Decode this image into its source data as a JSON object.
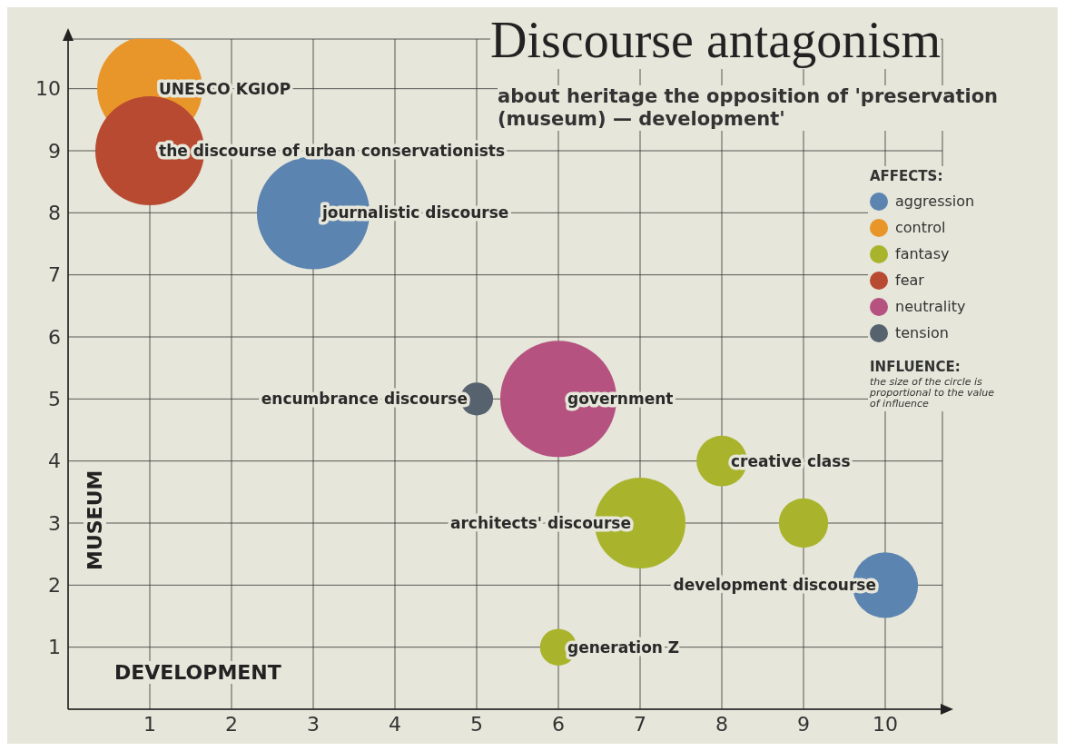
{
  "chart_data": {
    "type": "bubble",
    "title": "Discourse antagonism",
    "subtitle": "about heritage the opposition of 'preservation (museum) — development'",
    "xlabel": "DEVELOPMENT",
    "ylabel": "MUSEUM",
    "legend_title": "AFFECTS:",
    "legend": "right",
    "grid": true,
    "xlim": [
      0,
      10.7
    ],
    "ylim": [
      0,
      10.8
    ],
    "xticks": [
      1,
      2,
      3,
      4,
      5,
      6,
      7,
      8,
      9,
      10
    ],
    "yticks": [
      1,
      2,
      3,
      4,
      5,
      6,
      7,
      8,
      9,
      10
    ],
    "series": [
      {
        "name": "aggression",
        "color": "#5b84b1",
        "x": [
          3,
          10
        ],
        "values": [
          8,
          2
        ],
        "sizes": [
          0.94,
          0.32
        ]
      },
      {
        "name": "control",
        "color": "#e8962a",
        "x": [
          1
        ],
        "values": [
          10
        ],
        "sizes": [
          0.82
        ]
      },
      {
        "name": "fantasy",
        "color": "#a9b42c",
        "x": [
          8,
          7,
          9,
          6
        ],
        "values": [
          4,
          3,
          3,
          1
        ],
        "sizes": [
          0.19,
          0.61,
          0.18,
          0.1
        ]
      },
      {
        "name": "fear",
        "color": "#b84a32",
        "x": [
          1
        ],
        "values": [
          9
        ],
        "sizes": [
          0.88
        ]
      },
      {
        "name": "neutrality",
        "color": "#b5527f",
        "x": [
          6
        ],
        "values": [
          5
        ],
        "sizes": [
          1
        ]
      },
      {
        "name": "tension",
        "color": "#56626e",
        "x": [
          5
        ],
        "values": [
          5
        ],
        "sizes": [
          0.08
        ]
      }
    ],
    "annotations": [
      {
        "text": "UNESCO KGIOP",
        "x": 1,
        "y": 10
      },
      {
        "text": "the discourse of urban conservationists",
        "x": 1,
        "y": 9
      },
      {
        "text": "journalistic discourse",
        "x": 3,
        "y": 8
      },
      {
        "text": "encumbrance discourse",
        "x": 5,
        "y": 5
      },
      {
        "text": "government",
        "x": 6,
        "y": 5
      },
      {
        "text": "creative class",
        "x": 8,
        "y": 4
      },
      {
        "text": "architects' discourse",
        "x": 7,
        "y": 3
      },
      {
        "text": "development discourse",
        "x": 10,
        "y": 2
      },
      {
        "text": "generation Z",
        "x": 6,
        "y": 1
      },
      "INFLUENCE:",
      "the size of the circle is proportional to the value of influence"
    ]
  }
}
